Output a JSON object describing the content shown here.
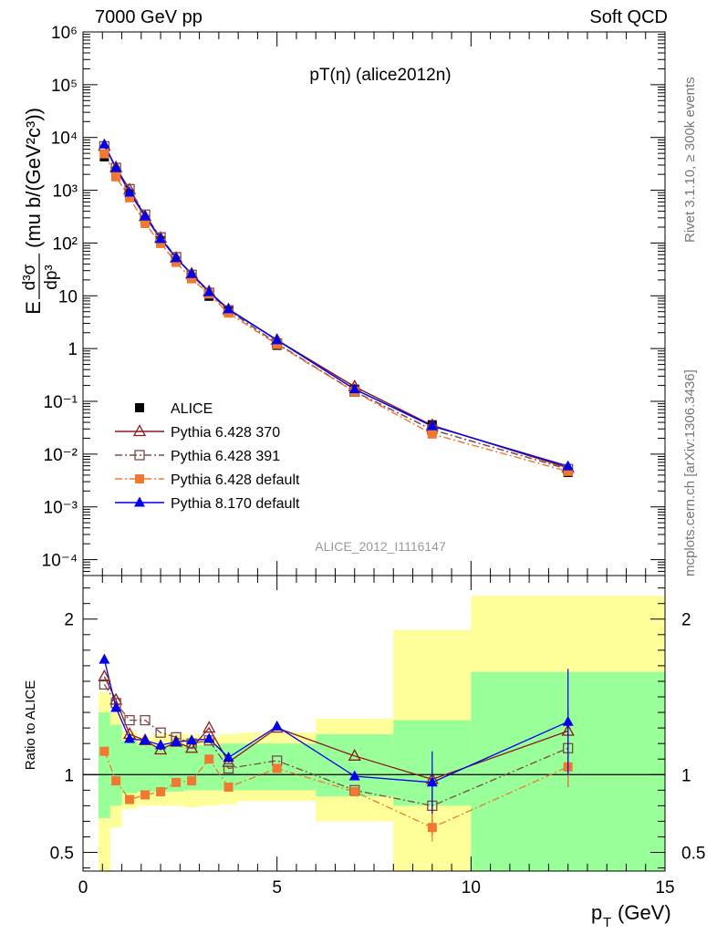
{
  "header": {
    "left": "7000 GeV pp",
    "right": "Soft QCD"
  },
  "side_labels": {
    "rivet": "Rivet 3.1.10, ≥ 300k events",
    "mcplots": "mcplots.cern.ch [arXiv:1306.3436]"
  },
  "chart_data": [
    {
      "type": "scatter",
      "title": "pT(η) (alice2012n)",
      "watermark": "ALICE_2012_I1116147",
      "ylabel_parts": {
        "E": "E",
        "num": "d³σ",
        "den": "dp³",
        "units": "(mu b/(GeV²c³))"
      },
      "yscale": "log",
      "ylim": [
        5e-05,
        1000000
      ],
      "yticks": [
        "10⁻⁴",
        "10⁻³",
        "10⁻²",
        "10⁻¹",
        "1",
        "10",
        "10²",
        "10³",
        "10⁴",
        "10⁵",
        "10⁶"
      ],
      "xlim": [
        0,
        15
      ],
      "legend_position": "lower-left",
      "x": [
        0.55,
        0.85,
        1.2,
        1.6,
        2.0,
        2.4,
        2.8,
        3.25,
        3.75,
        5.0,
        7.0,
        9.0,
        12.5
      ],
      "series": [
        {
          "name": "ALICE",
          "color": "#000000",
          "marker": "filled-square",
          "line": "none",
          "values": [
            4300,
            1850,
            850,
            270,
            110,
            45,
            22,
            9.8,
            5.1,
            1.15,
            0.17,
            0.036,
            0.0045
          ],
          "y_err": [
            0,
            0,
            0,
            0,
            0,
            0,
            0,
            0,
            0,
            0,
            0,
            0.003,
            0.0005
          ]
        },
        {
          "name": "Pythia 6.428 370",
          "color": "#8b1a1a",
          "marker": "open-triangle",
          "line": "solid",
          "values": [
            6900,
            2700,
            1020,
            320,
            124,
            52,
            26,
            12.0,
            5.5,
            1.45,
            0.19,
            0.035,
            0.0055
          ]
        },
        {
          "name": "Pythia 6.428 391",
          "color": "#7a4a4a",
          "marker": "open-square",
          "line": "dashdot",
          "values": [
            6800,
            2650,
            1050,
            345,
            128,
            54,
            25,
            11.4,
            5.3,
            1.25,
            0.153,
            0.029,
            0.0052
          ]
        },
        {
          "name": "Pythia 6.428 default",
          "color": "#f07830",
          "marker": "filled-square",
          "line": "dashdot",
          "values": [
            4900,
            1800,
            720,
            235,
            98,
            43,
            21,
            10.8,
            4.7,
            1.2,
            0.152,
            0.024,
            0.0047
          ]
        },
        {
          "name": "Pythia 8.170 default",
          "color": "#0000ee",
          "marker": "filled-triangle",
          "line": "solid",
          "values": [
            7400,
            2650,
            910,
            320,
            120,
            52,
            26,
            11.8,
            5.6,
            1.45,
            0.17,
            0.034,
            0.0059
          ]
        }
      ]
    },
    {
      "type": "scatter",
      "ylabel": "Ratio to ALICE",
      "xlabel": "p",
      "xlabel_sub": "T",
      "xlabel_unit": "(GeV)",
      "ylim": [
        0.38,
        2.28
      ],
      "xlim": [
        0,
        15
      ],
      "xticks": [
        "0",
        "5",
        "10",
        "15"
      ],
      "yticks": [
        "0.5",
        "1",
        "2"
      ],
      "reference_line": 1,
      "uncertainty_bands": {
        "x_edges": [
          0.4,
          0.7,
          1.0,
          1.4,
          1.8,
          2.2,
          2.6,
          3.0,
          3.5,
          4.0,
          6.0,
          8.0,
          10.0,
          15.0
        ],
        "inner_color": "#99ff99",
        "outer_color": "#ffff99",
        "inner_low": [
          0.72,
          0.8,
          0.88,
          0.89,
          0.89,
          0.89,
          0.9,
          0.9,
          0.9,
          0.9,
          0.86,
          0.8,
          0.38
        ],
        "inner_high": [
          1.4,
          1.32,
          1.22,
          1.19,
          1.19,
          1.19,
          1.19,
          1.19,
          1.2,
          1.2,
          1.26,
          1.35,
          1.66
        ],
        "outer_low": [
          0.38,
          0.66,
          0.78,
          0.8,
          0.8,
          0.8,
          0.79,
          0.8,
          0.81,
          0.83,
          0.7,
          0.38,
          0.38
        ],
        "outer_high": [
          1.53,
          1.4,
          1.28,
          1.24,
          1.26,
          1.26,
          1.26,
          1.24,
          1.26,
          1.27,
          1.36,
          1.93,
          2.15
        ]
      },
      "x": [
        0.55,
        0.85,
        1.2,
        1.6,
        2.0,
        2.4,
        2.8,
        3.25,
        3.75,
        5.0,
        7.0,
        9.0,
        12.5
      ],
      "series": [
        {
          "name": "Pythia 6.428 370",
          "values": [
            1.63,
            1.48,
            1.26,
            1.22,
            1.16,
            1.21,
            1.17,
            1.3,
            1.08,
            1.3,
            1.12,
            0.97,
            1.28
          ]
        },
        {
          "name": "Pythia 6.428 391",
          "values": [
            1.58,
            1.46,
            1.35,
            1.35,
            1.27,
            1.24,
            1.2,
            1.22,
            1.04,
            1.09,
            0.9,
            0.8,
            1.17
          ],
          "y_err": [
            0,
            0,
            0,
            0,
            0,
            0,
            0,
            0,
            0,
            0,
            0,
            0.19,
            0.25
          ]
        },
        {
          "name": "Pythia 6.428 default",
          "values": [
            1.15,
            0.96,
            0.84,
            0.87,
            0.89,
            0.95,
            0.96,
            1.1,
            0.92,
            1.04,
            0.89,
            0.66,
            1.05
          ],
          "y_err": [
            0,
            0,
            0,
            0,
            0,
            0,
            0,
            0,
            0,
            0,
            0,
            0.09,
            0.13
          ]
        },
        {
          "name": "Pythia 8.170 default",
          "values": [
            1.74,
            1.43,
            1.23,
            1.22,
            1.19,
            1.21,
            1.22,
            1.23,
            1.11,
            1.31,
            0.99,
            0.95,
            1.34
          ],
          "y_err": [
            0,
            0,
            0,
            0,
            0,
            0,
            0,
            0,
            0,
            0,
            0,
            0.2,
            0.34
          ]
        }
      ]
    }
  ]
}
